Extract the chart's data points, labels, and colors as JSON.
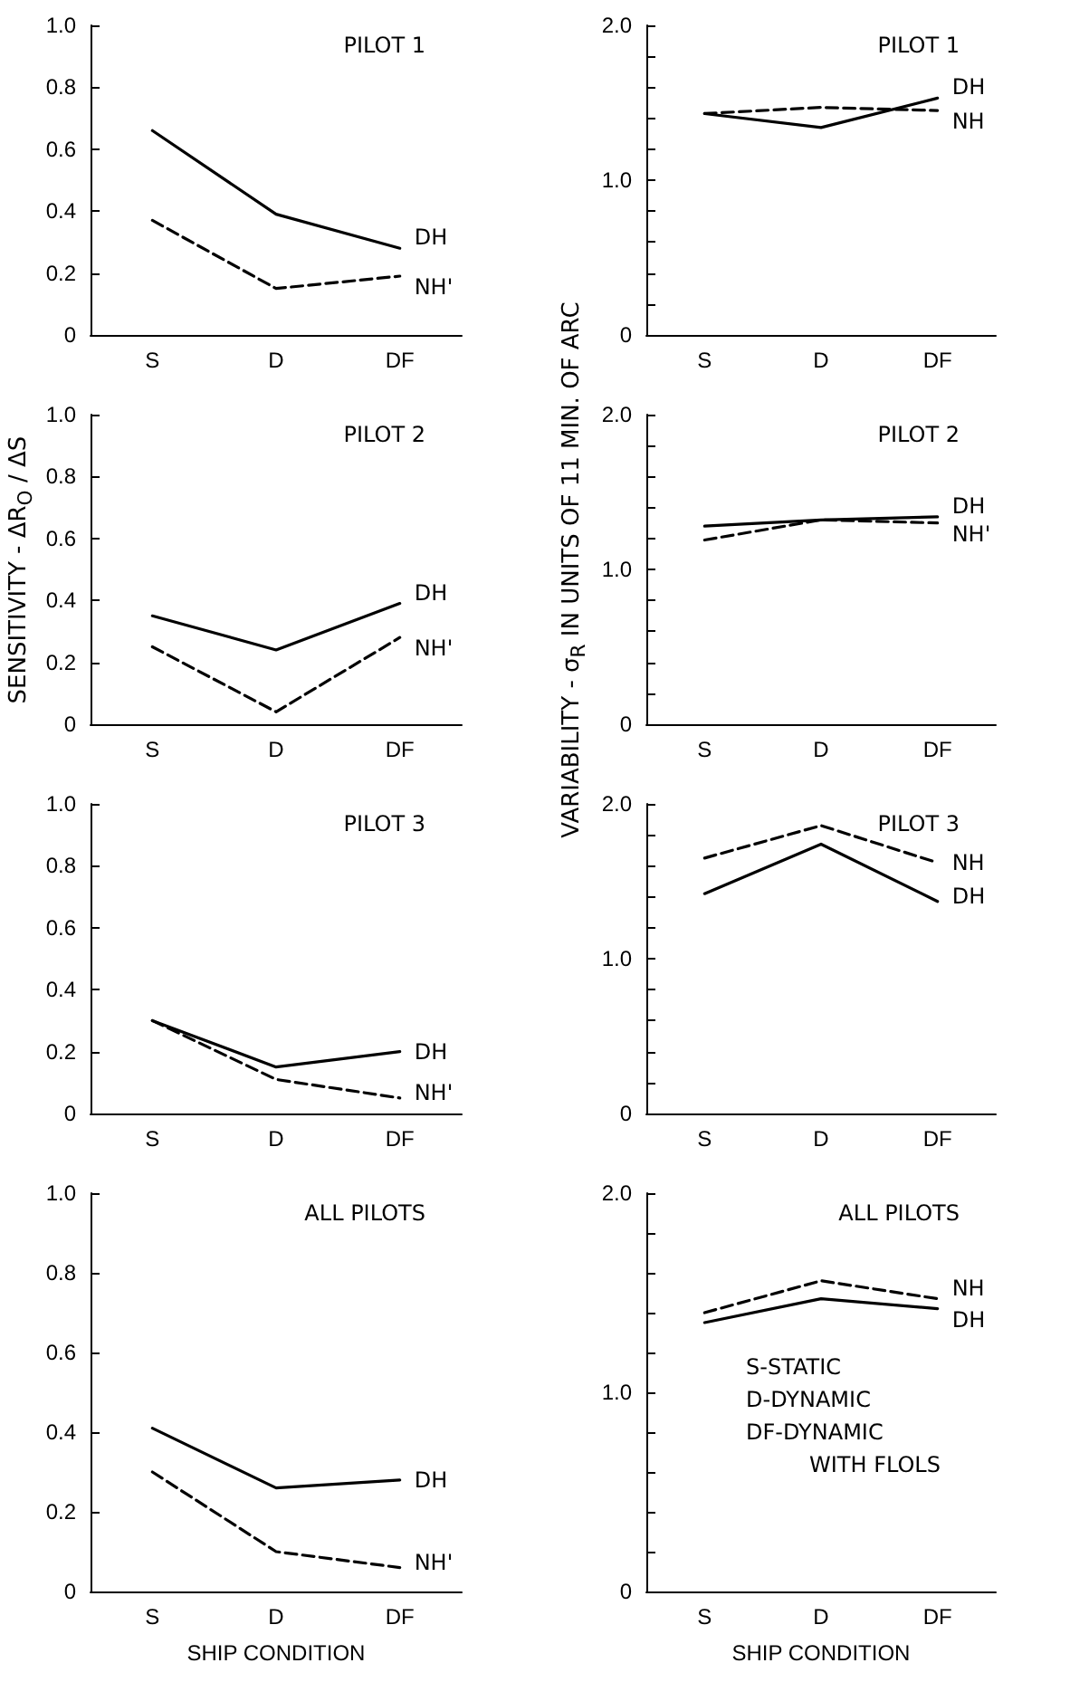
{
  "chart_data": [
    {
      "type": "line",
      "title": "PILOT 1",
      "categories": [
        "S",
        "D",
        "DF"
      ],
      "ylim": [
        0,
        1
      ],
      "yticks": [
        0,
        0.2,
        0.4,
        0.6,
        0.8,
        {
          "value": 1,
          "label": "1.0"
        }
      ],
      "grid": false,
      "legend": false,
      "marker": "none",
      "series": [
        {
          "name": "DH",
          "color": "#000000",
          "line_style": "solid",
          "values": [
            0.66,
            0.39,
            0.28
          ]
        },
        {
          "name": "NH'",
          "color": "#000000",
          "line_style": "dashed",
          "values": [
            0.37,
            0.15,
            0.19
          ]
        }
      ]
    },
    {
      "type": "line",
      "title": "PILOT 1",
      "categories": [
        "S",
        "D",
        "DF"
      ],
      "ylim": [
        0,
        2
      ],
      "yticks": [
        0,
        {
          "value": 0.2,
          "label": null
        },
        {
          "value": 0.4,
          "label": null
        },
        {
          "value": 0.6,
          "label": null
        },
        {
          "value": 0.8,
          "label": null
        },
        {
          "value": 1,
          "label": "1.0"
        },
        {
          "value": 1.2,
          "label": null
        },
        {
          "value": 1.4,
          "label": null
        },
        {
          "value": 1.6,
          "label": null
        },
        {
          "value": 1.8,
          "label": null
        },
        {
          "value": 2,
          "label": "2.0"
        }
      ],
      "grid": false,
      "legend": false,
      "marker": "none",
      "series": [
        {
          "name": "DH",
          "color": "#000000",
          "line_style": "solid",
          "values": [
            1.43,
            1.34,
            1.53
          ]
        },
        {
          "name": "NH",
          "color": "#000000",
          "line_style": "dashed",
          "values": [
            1.43,
            1.47,
            1.45
          ]
        }
      ]
    },
    {
      "type": "line",
      "title": "PILOT 2",
      "ylabel": "SENSITIVITY - ΔR$_{O}$ / ΔS",
      "categories": [
        "S",
        "D",
        "DF"
      ],
      "ylim": [
        0,
        1
      ],
      "yticks": [
        0,
        0.2,
        0.4,
        0.6,
        0.8,
        {
          "value": 1,
          "label": "1.0"
        }
      ],
      "grid": false,
      "legend": false,
      "marker": "none",
      "series": [
        {
          "name": "DH",
          "color": "#000000",
          "line_style": "solid",
          "values": [
            0.35,
            0.24,
            0.39
          ]
        },
        {
          "name": "NH'",
          "color": "#000000",
          "line_style": "dashed",
          "values": [
            0.25,
            0.04,
            0.28
          ]
        }
      ]
    },
    {
      "type": "line",
      "title": "PILOT 2",
      "ylabel": "VARIABILITY - σ$_{R}$ IN UNITS OF 11 MIN. OF ARC",
      "categories": [
        "S",
        "D",
        "DF"
      ],
      "ylim": [
        0,
        2
      ],
      "yticks": [
        0,
        {
          "value": 0.2,
          "label": null
        },
        {
          "value": 0.4,
          "label": null
        },
        {
          "value": 0.6,
          "label": null
        },
        {
          "value": 0.8,
          "label": null
        },
        {
          "value": 1,
          "label": "1.0"
        },
        {
          "value": 1.2,
          "label": null
        },
        {
          "value": 1.4,
          "label": null
        },
        {
          "value": 1.6,
          "label": null
        },
        {
          "value": 1.8,
          "label": null
        },
        {
          "value": 2,
          "label": "2.0"
        }
      ],
      "grid": false,
      "legend": false,
      "marker": "none",
      "series": [
        {
          "name": "DH",
          "color": "#000000",
          "line_style": "solid",
          "values": [
            1.28,
            1.32,
            1.34
          ]
        },
        {
          "name": "NH'",
          "color": "#000000",
          "line_style": "dashed",
          "values": [
            1.19,
            1.32,
            1.3
          ]
        }
      ]
    },
    {
      "type": "line",
      "title": "PILOT 3",
      "categories": [
        "S",
        "D",
        "DF"
      ],
      "ylim": [
        0,
        1
      ],
      "yticks": [
        0,
        0.2,
        0.4,
        0.6,
        0.8,
        {
          "value": 1,
          "label": "1.0"
        }
      ],
      "grid": false,
      "legend": false,
      "marker": "none",
      "series": [
        {
          "name": "DH",
          "color": "#000000",
          "line_style": "solid",
          "values": [
            0.3,
            0.15,
            0.2
          ]
        },
        {
          "name": "NH'",
          "color": "#000000",
          "line_style": "dashed",
          "values": [
            0.3,
            0.11,
            0.05
          ]
        }
      ]
    },
    {
      "type": "line",
      "title": "PILOT 3",
      "categories": [
        "S",
        "D",
        "DF"
      ],
      "ylim": [
        0,
        2
      ],
      "yticks": [
        0,
        {
          "value": 0.2,
          "label": null
        },
        {
          "value": 0.4,
          "label": null
        },
        {
          "value": 0.6,
          "label": null
        },
        {
          "value": 0.8,
          "label": null
        },
        {
          "value": 1,
          "label": "1.0"
        },
        {
          "value": 1.2,
          "label": null
        },
        {
          "value": 1.4,
          "label": null
        },
        {
          "value": 1.6,
          "label": null
        },
        {
          "value": 1.8,
          "label": null
        },
        {
          "value": 2,
          "label": "2.0"
        }
      ],
      "grid": false,
      "legend": false,
      "marker": "none",
      "series": [
        {
          "name": "DH",
          "color": "#000000",
          "line_style": "solid",
          "values": [
            1.42,
            1.74,
            1.37
          ]
        },
        {
          "name": "NH",
          "color": "#000000",
          "line_style": "dashed",
          "values": [
            1.65,
            1.86,
            1.62
          ]
        }
      ]
    },
    {
      "type": "line",
      "title": "ALL PILOTS",
      "xlabel": "SHIP CONDITION",
      "categories": [
        "S",
        "D",
        "DF"
      ],
      "ylim": [
        0,
        1
      ],
      "yticks": [
        0,
        0.2,
        0.4,
        0.6,
        0.8,
        {
          "value": 1,
          "label": "1.0"
        }
      ],
      "grid": false,
      "legend": false,
      "marker": "none",
      "series": [
        {
          "name": "DH",
          "color": "#000000",
          "line_style": "solid",
          "values": [
            0.41,
            0.26,
            0.28
          ]
        },
        {
          "name": "NH'",
          "color": "#000000",
          "line_style": "dashed",
          "values": [
            0.3,
            0.1,
            0.06
          ]
        }
      ]
    },
    {
      "type": "line",
      "title": "ALL PILOTS",
      "xlabel": "SHIP CONDITION",
      "categories": [
        "S",
        "D",
        "DF"
      ],
      "ylim": [
        0,
        2
      ],
      "yticks": [
        0,
        {
          "value": 0.2,
          "label": null
        },
        {
          "value": 0.4,
          "label": null
        },
        {
          "value": 0.6,
          "label": null
        },
        {
          "value": 0.8,
          "label": null
        },
        {
          "value": 1,
          "label": "1.0"
        },
        {
          "value": 1.2,
          "label": null
        },
        {
          "value": 1.4,
          "label": null
        },
        {
          "value": 1.6,
          "label": null
        },
        {
          "value": 1.8,
          "label": null
        },
        {
          "value": 2,
          "label": "2.0"
        }
      ],
      "grid": false,
      "legend": false,
      "marker": "none",
      "annotations": [
        "S-STATIC",
        "D-DYNAMIC",
        "DF-DYNAMIC",
        "WITH FLOLS"
      ],
      "series": [
        {
          "name": "DH",
          "color": "#000000",
          "line_style": "solid",
          "values": [
            1.35,
            1.47,
            1.42
          ]
        },
        {
          "name": "NH",
          "color": "#000000",
          "line_style": "dashed",
          "values": [
            1.4,
            1.56,
            1.47
          ]
        }
      ]
    }
  ]
}
